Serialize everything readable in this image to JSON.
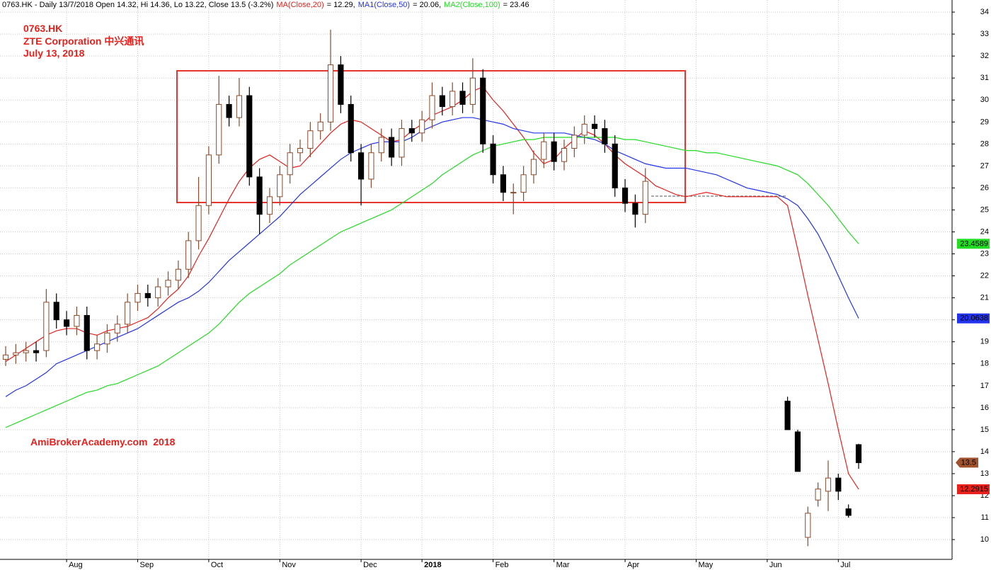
{
  "chart_data": {
    "type": "candlestick",
    "header": "0763.HK - Daily 13/7/2018 Open 14.32, Hi 14.36, Lo 13.22, Close 13.5 (-3.2%)",
    "annotations": [
      "0763.HK",
      "ZTE Corporation 中兴通讯",
      "July 13, 2018"
    ],
    "watermark": "AmiBrokerAcademy.com  2018",
    "categories": [
      null,
      null,
      null,
      null,
      null,
      null,
      "Aug",
      null,
      null,
      null,
      null,
      null,
      null,
      "Sep",
      null,
      null,
      null,
      null,
      null,
      null,
      "Oct",
      null,
      null,
      null,
      null,
      null,
      null,
      "Nov",
      null,
      null,
      null,
      null,
      null,
      null,
      null,
      "Dec",
      null,
      null,
      null,
      null,
      null,
      "2018",
      null,
      null,
      null,
      null,
      null,
      null,
      "Feb",
      null,
      null,
      null,
      null,
      null,
      "Mar",
      null,
      null,
      null,
      null,
      null,
      null,
      "Apr",
      null,
      null,
      null,
      null,
      null,
      null,
      "May",
      null,
      null,
      null,
      null,
      null,
      null,
      "Jun",
      null,
      null,
      null,
      null,
      null,
      null,
      "Jul",
      null,
      null
    ],
    "open": [
      18.2,
      18.4,
      18.5,
      18.6,
      18.6,
      20.8,
      20.0,
      19.7,
      20.2,
      18.6,
      18.9,
      19.4,
      19.8,
      20.8,
      21.2,
      21.0,
      21.5,
      21.8,
      22.3,
      23.6,
      25.2,
      27.5,
      29.8,
      29.2,
      30.2,
      26.5,
      24.8,
      25.6,
      26.6,
      27.6,
      27.8,
      28.6,
      29.0,
      31.6,
      29.8,
      27.6,
      26.4,
      27.6,
      28.3,
      27.4,
      28.7,
      28.5,
      29.1,
      30.2,
      29.7,
      30.4,
      29.8,
      31.0,
      28.0,
      26.6,
      25.8,
      25.8,
      26.6,
      27.3,
      28.1,
      27.2,
      27.8,
      28.4,
      28.9,
      28.7,
      28.0,
      26.0,
      25.3,
      24.8,
      null,
      null,
      null,
      null,
      null,
      null,
      null,
      null,
      null,
      null,
      null,
      null,
      null,
      16.3,
      14.9,
      10.1,
      11.8,
      12.2,
      12.8,
      11.4,
      14.32
    ],
    "high": [
      18.8,
      18.9,
      19.0,
      19.0,
      21.4,
      21.2,
      20.4,
      20.6,
      20.6,
      19.3,
      19.8,
      20.2,
      21.2,
      21.6,
      21.6,
      21.9,
      22.2,
      22.7,
      24.0,
      26.5,
      27.9,
      31.1,
      30.2,
      31.0,
      30.6,
      26.9,
      26.0,
      27.0,
      28.0,
      28.2,
      29.0,
      29.4,
      33.2,
      32.0,
      30.2,
      28.0,
      28.0,
      28.7,
      28.7,
      29.1,
      29.1,
      29.5,
      30.8,
      30.6,
      30.8,
      30.8,
      31.9,
      31.4,
      28.4,
      27.0,
      26.2,
      27.0,
      27.7,
      28.5,
      28.5,
      28.2,
      28.8,
      29.3,
      29.3,
      29.1,
      28.4,
      26.4,
      25.7,
      26.9,
      null,
      null,
      null,
      null,
      null,
      null,
      null,
      null,
      null,
      null,
      null,
      null,
      null,
      16.5,
      15.0,
      11.5,
      12.6,
      13.6,
      13.0,
      11.6,
      14.36
    ],
    "low": [
      17.9,
      18.0,
      18.1,
      18.1,
      18.3,
      19.6,
      19.3,
      19.3,
      18.2,
      18.2,
      18.5,
      19.0,
      19.4,
      20.4,
      20.6,
      20.6,
      21.1,
      21.4,
      21.9,
      23.2,
      24.8,
      27.1,
      28.8,
      28.8,
      26.1,
      23.9,
      24.4,
      25.2,
      26.2,
      27.2,
      27.4,
      28.2,
      28.6,
      29.4,
      27.2,
      25.2,
      26.0,
      27.2,
      27.0,
      27.0,
      28.1,
      28.1,
      28.7,
      29.3,
      29.3,
      29.4,
      29.4,
      27.6,
      26.2,
      25.4,
      24.8,
      25.4,
      26.2,
      26.9,
      26.8,
      26.8,
      27.4,
      28.0,
      28.3,
      27.6,
      25.6,
      24.9,
      24.2,
      24.4,
      null,
      null,
      null,
      null,
      null,
      null,
      null,
      null,
      null,
      null,
      null,
      null,
      null,
      15.0,
      13.1,
      9.7,
      11.5,
      11.3,
      11.8,
      11.0,
      13.22
    ],
    "close": [
      18.4,
      18.5,
      18.6,
      18.5,
      20.8,
      20.0,
      19.7,
      20.2,
      18.6,
      18.9,
      19.4,
      19.8,
      20.8,
      21.2,
      21.0,
      21.5,
      21.8,
      22.3,
      23.6,
      25.2,
      27.5,
      29.8,
      29.2,
      30.2,
      26.5,
      24.8,
      25.6,
      26.6,
      27.6,
      27.8,
      28.6,
      29.0,
      31.6,
      29.8,
      27.6,
      26.4,
      27.6,
      28.3,
      27.4,
      28.7,
      28.5,
      29.1,
      30.2,
      29.7,
      30.4,
      29.8,
      31.0,
      28.0,
      26.6,
      25.8,
      25.8,
      26.6,
      27.3,
      28.1,
      27.2,
      27.8,
      28.4,
      28.9,
      28.7,
      28.0,
      26.0,
      25.3,
      24.8,
      26.3,
      null,
      null,
      null,
      null,
      null,
      null,
      null,
      null,
      null,
      null,
      null,
      null,
      null,
      15.0,
      13.1,
      11.2,
      12.3,
      12.8,
      12.2,
      11.1,
      13.5
    ],
    "color_up": "#ffffff",
    "color_down": "#000000",
    "candle_outline": "#8b4a2b",
    "series": [
      {
        "name": "MA(Close,20)",
        "header_value": "= 12.29,",
        "color": "#e8201c",
        "values": [
          18.1,
          18.4,
          18.7,
          19.0,
          19.3,
          19.5,
          19.6,
          19.6,
          19.4,
          19.3,
          19.5,
          19.6,
          19.7,
          19.9,
          20.1,
          20.5,
          21.0,
          21.4,
          22.0,
          22.9,
          23.7,
          24.6,
          25.5,
          26.3,
          26.9,
          27.3,
          27.5,
          27.2,
          26.9,
          27.0,
          27.5,
          28.0,
          28.5,
          28.9,
          29.1,
          29.0,
          28.7,
          28.4,
          28.1,
          28.2,
          28.6,
          28.9,
          29.3,
          29.5,
          29.7,
          30.0,
          30.4,
          30.6,
          30.0,
          29.5,
          28.9,
          28.3,
          27.6,
          27.1,
          27.3,
          27.8,
          28.2,
          28.6,
          28.4,
          28.0,
          27.5,
          27.1,
          26.8,
          26.5,
          26.1,
          25.9,
          25.7,
          25.6,
          25.7,
          25.8,
          25.7,
          25.6,
          25.6,
          25.6,
          25.6,
          25.6,
          25.6,
          25.2,
          23.2,
          21.1,
          19.1,
          17.1,
          15.0,
          13.0,
          12.2915
        ]
      },
      {
        "name": "MA1(Close,50)",
        "header_value": "= 20.06,",
        "color": "#2233ee",
        "values": [
          16.5,
          16.8,
          17.0,
          17.3,
          17.6,
          18.0,
          18.2,
          18.4,
          18.6,
          18.8,
          19.0,
          19.2,
          19.4,
          19.6,
          19.9,
          20.2,
          20.5,
          20.8,
          21.0,
          21.3,
          21.7,
          22.2,
          22.7,
          23.1,
          23.5,
          23.9,
          24.3,
          24.7,
          25.2,
          25.7,
          26.1,
          26.5,
          26.9,
          27.3,
          27.6,
          27.8,
          28.0,
          28.1,
          28.1,
          28.1,
          28.3,
          28.6,
          28.8,
          29.0,
          29.1,
          29.2,
          29.2,
          29.1,
          29.0,
          28.9,
          28.7,
          28.6,
          28.5,
          28.5,
          28.5,
          28.5,
          28.4,
          28.3,
          28.2,
          28.0,
          27.7,
          27.5,
          27.3,
          27.1,
          27.0,
          26.9,
          26.9,
          26.9,
          26.8,
          26.7,
          26.6,
          26.4,
          26.2,
          26.0,
          25.9,
          25.8,
          25.7,
          25.5,
          25.2,
          24.6,
          23.9,
          23.0,
          22.0,
          21.0,
          20.0638
        ]
      },
      {
        "name": "MA2(Close,100)",
        "header_value": "= 23.46",
        "color": "#22dd22",
        "values": [
          15.1,
          15.3,
          15.5,
          15.7,
          15.9,
          16.1,
          16.3,
          16.5,
          16.7,
          16.8,
          17.0,
          17.1,
          17.3,
          17.5,
          17.7,
          17.9,
          18.2,
          18.5,
          18.8,
          19.1,
          19.4,
          19.8,
          20.3,
          20.8,
          21.2,
          21.5,
          21.8,
          22.1,
          22.5,
          22.8,
          23.1,
          23.4,
          23.7,
          24.0,
          24.2,
          24.4,
          24.6,
          24.8,
          25.0,
          25.3,
          25.6,
          25.9,
          26.2,
          26.6,
          26.9,
          27.2,
          27.5,
          27.7,
          27.9,
          28.0,
          28.1,
          28.2,
          28.2,
          28.3,
          28.3,
          28.3,
          28.3,
          28.3,
          28.3,
          28.3,
          28.3,
          28.2,
          28.2,
          28.1,
          28.0,
          27.9,
          27.8,
          27.7,
          27.7,
          27.6,
          27.6,
          27.5,
          27.4,
          27.3,
          27.2,
          27.1,
          27.0,
          26.8,
          26.6,
          26.2,
          25.7,
          25.2,
          24.6,
          24.0,
          23.4589
        ]
      }
    ],
    "ylim": [
      9.1,
      34.55
    ],
    "yticks": [
      10,
      11,
      12,
      13,
      14,
      15,
      16,
      17,
      18,
      19,
      20,
      21,
      22,
      23,
      24,
      25,
      26,
      27,
      28,
      29,
      30,
      31,
      32,
      33,
      34
    ],
    "grid": true,
    "last_close_badge_color": "#a0522d"
  }
}
